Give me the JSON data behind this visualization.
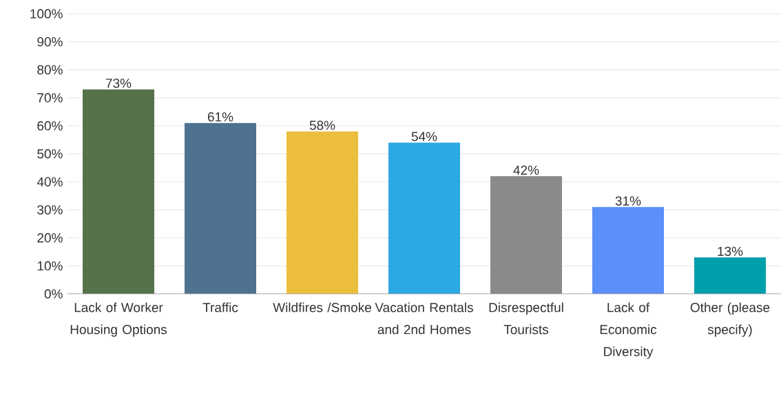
{
  "chart_data": {
    "type": "bar",
    "categories": [
      "Lack of Worker Housing Options",
      "Traffic",
      "Wildfires /Smoke",
      "Vacation Rentals and 2nd Homes",
      "Disrespectful Tourists",
      "Lack of Economic Diversity",
      "Other (please specify)"
    ],
    "values": [
      73,
      61,
      58,
      54,
      42,
      31,
      13
    ],
    "value_labels": [
      "73%",
      "61%",
      "58%",
      "54%",
      "42%",
      "31%",
      "13%"
    ],
    "colors": [
      "#56724a",
      "#4e728f",
      "#ebbf3d",
      "#2ba9e4",
      "#8a8a8a",
      "#5b8ff9",
      "#009fac"
    ],
    "ylim": [
      0,
      100
    ],
    "yticks": [
      {
        "value": 0,
        "label": "0%"
      },
      {
        "value": 10,
        "label": "10%"
      },
      {
        "value": 20,
        "label": "20%"
      },
      {
        "value": 30,
        "label": "30%"
      },
      {
        "value": 40,
        "label": "40%"
      },
      {
        "value": 50,
        "label": "50%"
      },
      {
        "value": 60,
        "label": "60%"
      },
      {
        "value": 70,
        "label": "70%"
      },
      {
        "value": 80,
        "label": "80%"
      },
      {
        "value": 90,
        "label": "90%"
      },
      {
        "value": 100,
        "label": "100%"
      }
    ],
    "grid": "y"
  }
}
